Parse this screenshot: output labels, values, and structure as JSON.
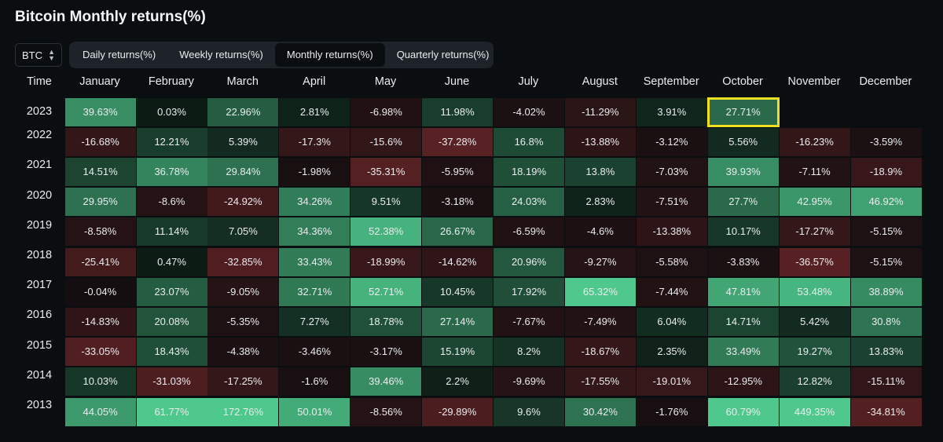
{
  "header": {
    "title": "Bitcoin Monthly returns(%)"
  },
  "asset_select": {
    "value": "BTC"
  },
  "tabs": [
    {
      "label": "Daily returns(%)",
      "active": false
    },
    {
      "label": "Weekly returns(%)",
      "active": false
    },
    {
      "label": "Monthly returns(%)",
      "active": true
    },
    {
      "label": "Quarterly returns(%)",
      "active": false
    }
  ],
  "colors": {
    "positive": "#2ebd85",
    "negative": "#c94a4a",
    "highlight": "#f0e021"
  },
  "chart_data": {
    "type": "heatmap",
    "corner_label": "Time",
    "columns": [
      "January",
      "February",
      "March",
      "April",
      "May",
      "June",
      "July",
      "August",
      "September",
      "October",
      "November",
      "December"
    ],
    "rows": [
      {
        "year": "2023",
        "values": [
          "39.63%",
          "0.03%",
          "22.96%",
          "2.81%",
          "-6.98%",
          "11.98%",
          "-4.02%",
          "-11.29%",
          "3.91%",
          "27.71%",
          "",
          ""
        ]
      },
      {
        "year": "2022",
        "values": [
          "-16.68%",
          "12.21%",
          "5.39%",
          "-17.3%",
          "-15.6%",
          "-37.28%",
          "16.8%",
          "-13.88%",
          "-3.12%",
          "5.56%",
          "-16.23%",
          "-3.59%"
        ]
      },
      {
        "year": "2021",
        "values": [
          "14.51%",
          "36.78%",
          "29.84%",
          "-1.98%",
          "-35.31%",
          "-5.95%",
          "18.19%",
          "13.8%",
          "-7.03%",
          "39.93%",
          "-7.11%",
          "-18.9%"
        ]
      },
      {
        "year": "2020",
        "values": [
          "29.95%",
          "-8.6%",
          "-24.92%",
          "34.26%",
          "9.51%",
          "-3.18%",
          "24.03%",
          "2.83%",
          "-7.51%",
          "27.7%",
          "42.95%",
          "46.92%"
        ]
      },
      {
        "year": "2019",
        "values": [
          "-8.58%",
          "11.14%",
          "7.05%",
          "34.36%",
          "52.38%",
          "26.67%",
          "-6.59%",
          "-4.6%",
          "-13.38%",
          "10.17%",
          "-17.27%",
          "-5.15%"
        ]
      },
      {
        "year": "2018",
        "values": [
          "-25.41%",
          "0.47%",
          "-32.85%",
          "33.43%",
          "-18.99%",
          "-14.62%",
          "20.96%",
          "-9.27%",
          "-5.58%",
          "-3.83%",
          "-36.57%",
          "-5.15%"
        ]
      },
      {
        "year": "2017",
        "values": [
          "-0.04%",
          "23.07%",
          "-9.05%",
          "32.71%",
          "52.71%",
          "10.45%",
          "17.92%",
          "65.32%",
          "-7.44%",
          "47.81%",
          "53.48%",
          "38.89%"
        ]
      },
      {
        "year": "2016",
        "values": [
          "-14.83%",
          "20.08%",
          "-5.35%",
          "7.27%",
          "18.78%",
          "27.14%",
          "-7.67%",
          "-7.49%",
          "6.04%",
          "14.71%",
          "5.42%",
          "30.8%"
        ]
      },
      {
        "year": "2015",
        "values": [
          "-33.05%",
          "18.43%",
          "-4.38%",
          "-3.46%",
          "-3.17%",
          "15.19%",
          "8.2%",
          "-18.67%",
          "2.35%",
          "33.49%",
          "19.27%",
          "13.83%"
        ]
      },
      {
        "year": "2014",
        "values": [
          "10.03%",
          "-31.03%",
          "-17.25%",
          "-1.6%",
          "39.46%",
          "2.2%",
          "-9.69%",
          "-17.55%",
          "-19.01%",
          "-12.95%",
          "12.82%",
          "-15.11%"
        ]
      },
      {
        "year": "2013",
        "values": [
          "44.05%",
          "61.77%",
          "172.76%",
          "50.01%",
          "-8.56%",
          "-29.89%",
          "9.6%",
          "30.42%",
          "-1.76%",
          "60.79%",
          "449.35%",
          "-34.81%"
        ]
      }
    ],
    "highlighted_cell": {
      "year": "2023",
      "month": "October"
    }
  }
}
